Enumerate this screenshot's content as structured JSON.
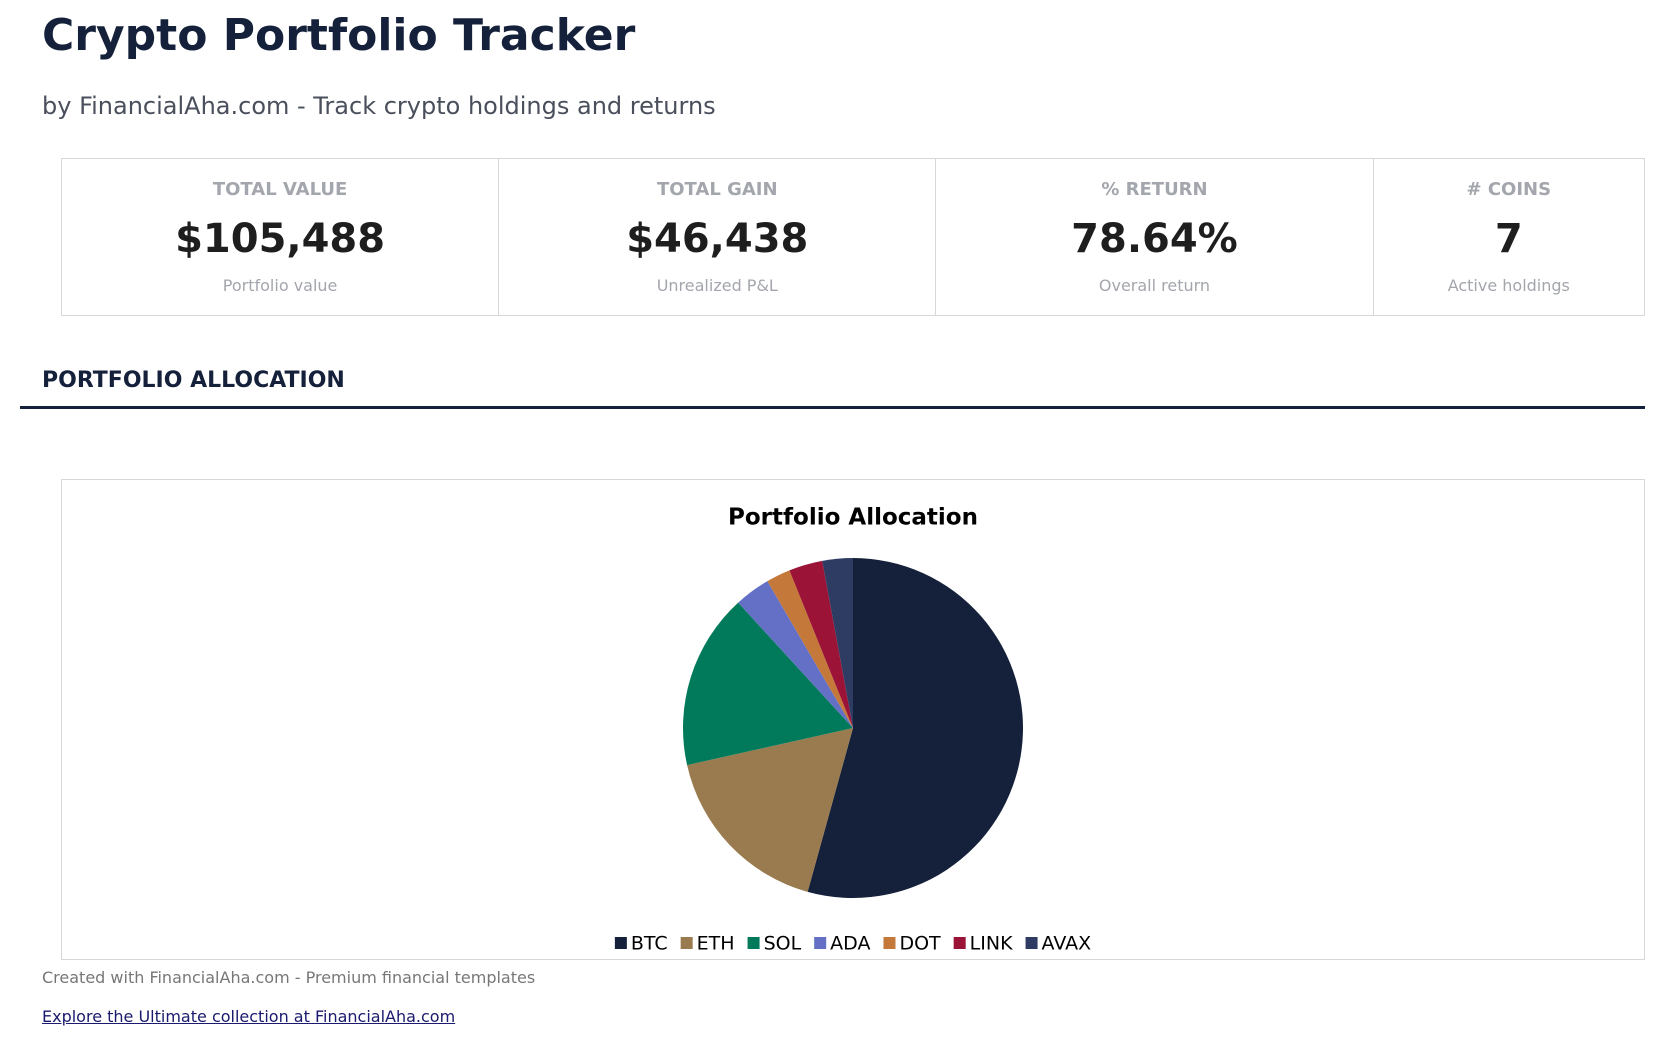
{
  "header": {
    "title": "Crypto Portfolio Tracker",
    "subtitle": "by FinancialAha.com - Track crypto holdings and returns"
  },
  "cards": [
    {
      "label": "TOTAL VALUE",
      "value": "$105,488",
      "note": "Portfolio value"
    },
    {
      "label": "TOTAL GAIN",
      "value": "$46,438",
      "note": "Unrealized P&L"
    },
    {
      "label": "% RETURN",
      "value": "78.64%",
      "note": "Overall return"
    },
    {
      "label": "# COINS",
      "value": "7",
      "note": "Active holdings"
    }
  ],
  "section_title": "PORTFOLIO ALLOCATION",
  "chart_data": {
    "type": "pie",
    "title": "Portfolio Allocation",
    "categories": [
      "BTC",
      "ETH",
      "SOL",
      "ADA",
      "DOT",
      "LINK",
      "AVAX"
    ],
    "values": [
      54.3,
      17.2,
      16.7,
      3.4,
      2.3,
      3.2,
      2.9
    ],
    "colors": [
      "#15213b",
      "#9a7b4f",
      "#007a5a",
      "#6370c6",
      "#c4793a",
      "#9b1437",
      "#2e3c63"
    ]
  },
  "footer": {
    "note": "Created with FinancialAha.com - Premium financial templates",
    "link": "Explore the Ultimate collection at FinancialAha.com"
  }
}
